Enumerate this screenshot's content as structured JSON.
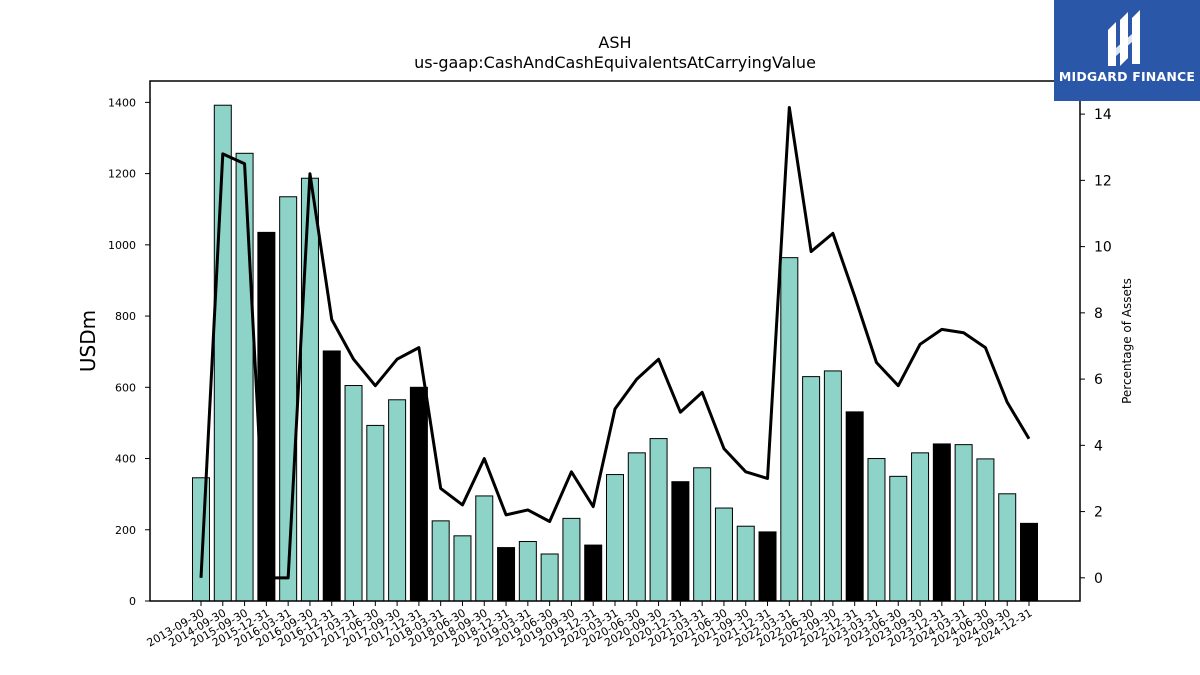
{
  "chart_data": {
    "type": "bar",
    "title": "ASH",
    "subtitle": "us-gaap:CashAndCashEquivalentsAtCarryingValue",
    "ylabel": "USDm",
    "y2label": "Percentage of Assets",
    "ylim": [
      0,
      1460
    ],
    "y2lim": [
      -0.7,
      15
    ],
    "yticks": [
      0,
      200,
      400,
      600,
      800,
      1000,
      1200,
      1400
    ],
    "y2ticks": [
      0,
      2,
      4,
      6,
      8,
      10,
      12,
      14
    ],
    "grid": false,
    "legend": "none",
    "categories": [
      "2013-09-30",
      "2014-09-30",
      "2015-09-30",
      "2015-12-31",
      "2016-03-31",
      "2016-09-30",
      "2016-12-31",
      "2017-03-31",
      "2017-06-30",
      "2017-09-30",
      "2017-12-31",
      "2018-03-31",
      "2018-06-30",
      "2018-09-30",
      "2018-12-31",
      "2019-03-31",
      "2019-06-30",
      "2019-09-30",
      "2019-12-31",
      "2020-03-31",
      "2020-06-30",
      "2020-09-30",
      "2020-12-31",
      "2021-03-31",
      "2021-06-30",
      "2021-09-30",
      "2021-12-31",
      "2022-03-31",
      "2022-06-30",
      "2022-09-30",
      "2022-12-31",
      "2023-03-31",
      "2023-06-30",
      "2023-09-30",
      "2023-12-31",
      "2024-03-31",
      "2024-06-30",
      "2024-09-30",
      "2024-12-31"
    ],
    "series": [
      {
        "kind": "bar",
        "values": [
          346,
          1392,
          1257,
          1035,
          1135,
          1187,
          702,
          605,
          493,
          565,
          600,
          225,
          183,
          295,
          150,
          167,
          132,
          232,
          157,
          355,
          416,
          456,
          335,
          374,
          261,
          210,
          194,
          964,
          630,
          646,
          531,
          400,
          350,
          416,
          441,
          439,
          399,
          301,
          218
        ],
        "highlight": [
          false,
          false,
          false,
          true,
          false,
          false,
          true,
          false,
          false,
          false,
          true,
          false,
          false,
          false,
          true,
          false,
          false,
          false,
          true,
          false,
          false,
          false,
          true,
          false,
          false,
          false,
          true,
          false,
          false,
          false,
          true,
          false,
          false,
          false,
          true,
          false,
          false,
          false,
          true
        ]
      },
      {
        "kind": "line",
        "axis": "right",
        "values": [
          0.0,
          12.8,
          12.5,
          0.0,
          0.0,
          12.2,
          7.8,
          6.6,
          5.8,
          6.6,
          6.95,
          2.7,
          2.2,
          3.6,
          1.9,
          2.05,
          1.7,
          3.2,
          2.15,
          5.1,
          6.0,
          6.6,
          5.0,
          5.6,
          3.9,
          3.2,
          3.0,
          14.2,
          9.85,
          10.4,
          8.5,
          6.5,
          5.8,
          7.05,
          7.5,
          7.4,
          6.95,
          5.3,
          4.2
        ]
      }
    ],
    "colors": {
      "bar": "#8dd3c7",
      "bar_highlight": "#000000",
      "line": "#000000",
      "edge": "#000000"
    }
  },
  "brand": {
    "logo_text": "MIDGARD FINANCE",
    "logo_color": "#2b57a8"
  }
}
